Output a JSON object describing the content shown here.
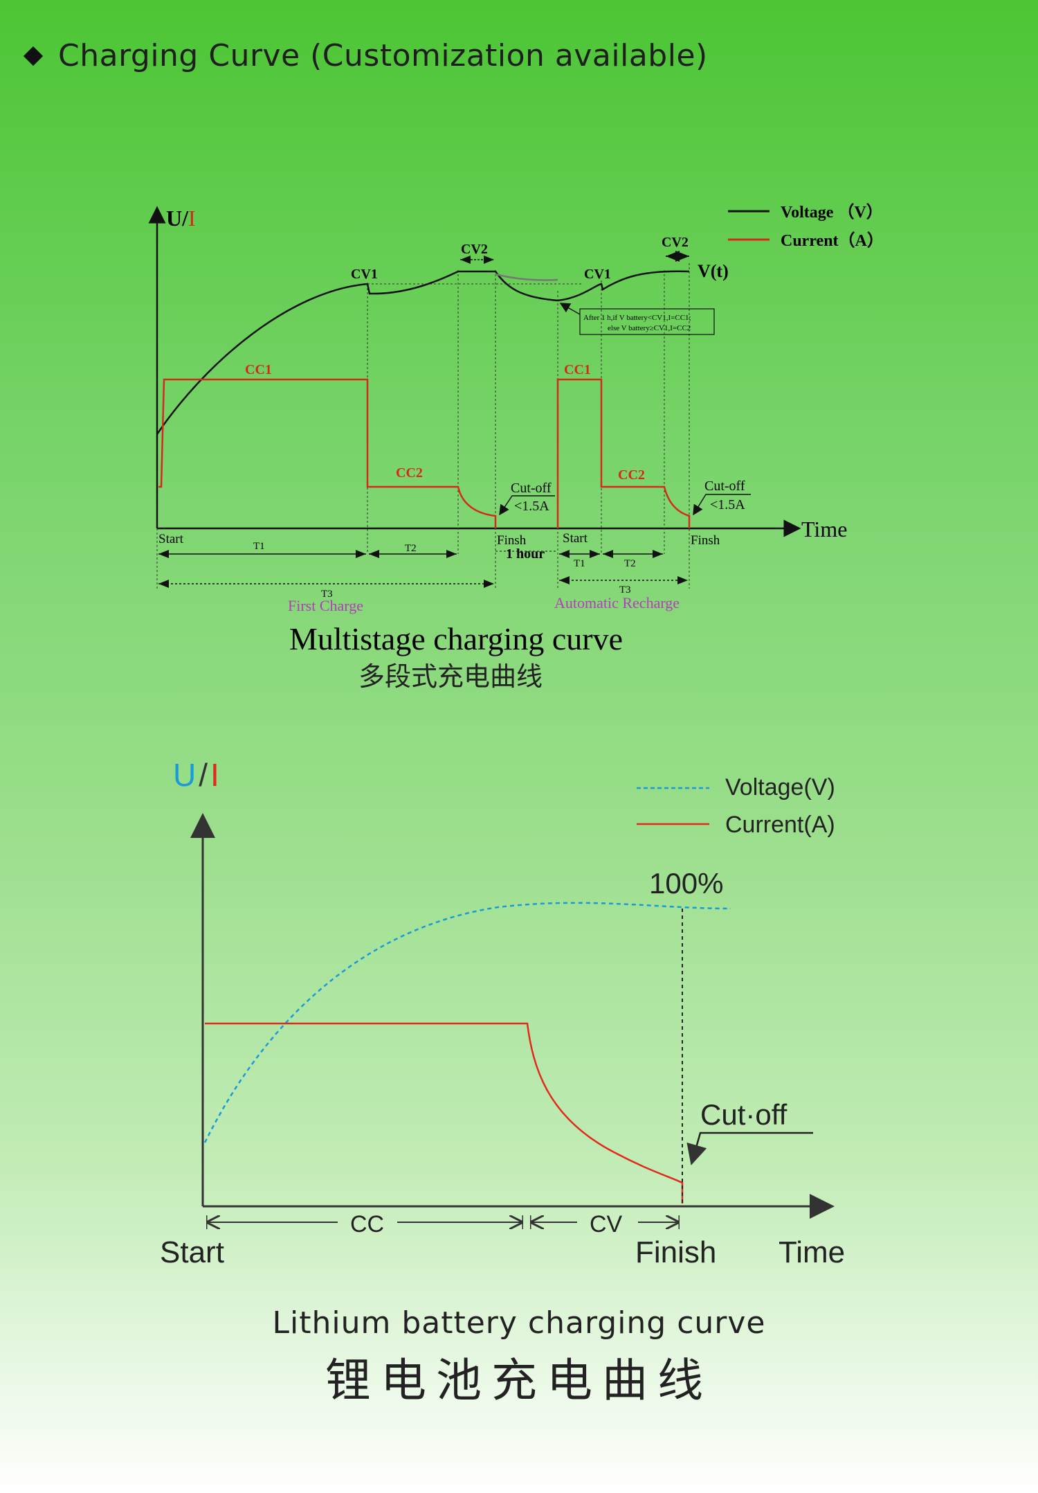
{
  "header": {
    "title": "Charging Curve (Customization available)"
  },
  "diagram1": {
    "axis_u": "U/",
    "axis_i": "I",
    "axis_time": "Time",
    "legend_voltage": "Voltage （V）",
    "legend_current": "Current（A）",
    "cv1_a": "CV1",
    "cv1_b": "CV1",
    "cv2_a": "CV2",
    "cv2_b": "CV2",
    "vt": "V(t)",
    "note_line1": "After 1 h,if V battery<CV1,I=CC1;",
    "note_line2": "else V battery≥CV1,I=CC2",
    "cc1_a": "CC1",
    "cc1_b": "CC1",
    "cc2_a": "CC2",
    "cc2_b": "CC2",
    "cutoff_a": "Cut-off",
    "cutoff_a_val": "<1.5A",
    "cutoff_b": "Cut-off",
    "cutoff_b_val": "<1.5A",
    "start_a": "Start",
    "start_b": "Start",
    "finish_a": "Finsh",
    "finish_b": "Finsh",
    "one_hour": "1 hour",
    "t1_a": "T1",
    "t2_a": "T2",
    "t3_a": "T3",
    "t1_b": "T1",
    "t2_b": "T2",
    "t3_b": "T3",
    "first_charge": "First Charge",
    "auto_recharge": "Automatic Recharge",
    "caption_en": "Multistage charging curve",
    "caption_cn": "多段式充电曲线",
    "colors": {
      "voltage": "#111111",
      "current": "#d42a1c",
      "label_purple": "#b040b8"
    }
  },
  "diagram2": {
    "axis_u": "U",
    "axis_slash": "/",
    "axis_i": "I",
    "legend_voltage": "Voltage(V)",
    "legend_current": "Current(A)",
    "full": "100%",
    "cutoff": "Cut·off",
    "cc": "CC",
    "cv": "CV",
    "start": "Start",
    "finish": "Finish",
    "time": "Time",
    "caption_en": "Lithium battery charging curve",
    "caption_cn": "锂电池充电曲线",
    "colors": {
      "voltage": "#1a9ad6",
      "current": "#e02a1e"
    }
  }
}
